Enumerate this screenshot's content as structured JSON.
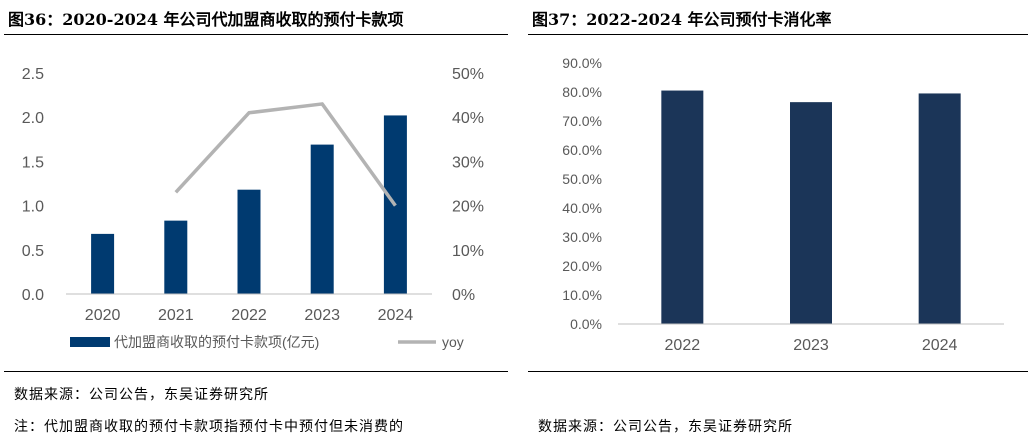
{
  "left": {
    "title": "图36：2020-2024 年公司代加盟商收取的预付卡款项",
    "source": "数据来源：公司公告，东吴证券研究所",
    "note": "注：代加盟商收取的预付卡款项指预付卡中预付但未消费的",
    "colors": {
      "bar": "#003a70",
      "line": "#b3b3b3"
    }
  },
  "right": {
    "title": "图37：2022-2024 年公司预付卡消化率",
    "source": "数据来源：公司公告，东吴证券研究所",
    "colors": {
      "bar": "#1b3558"
    }
  },
  "chart_data": [
    {
      "type": "bar",
      "title": "图36：2020-2024 年公司代加盟商收取的预付卡款项",
      "categories": [
        "2020",
        "2021",
        "2022",
        "2023",
        "2024"
      ],
      "series": [
        {
          "name": "代加盟商收取的预付卡款项(亿元)",
          "type": "bar",
          "axis": "left",
          "values": [
            0.68,
            0.83,
            1.18,
            1.69,
            2.02
          ]
        },
        {
          "name": "yoy",
          "type": "line",
          "axis": "right",
          "values": [
            null,
            23,
            41,
            43,
            20
          ]
        }
      ],
      "ylim": [
        0,
        2.5
      ],
      "yticks": [
        "0.0",
        "0.5",
        "1.0",
        "1.5",
        "2.0",
        "2.5"
      ],
      "y2lim": [
        0,
        50
      ],
      "y2ticks": [
        "0%",
        "10%",
        "20%",
        "30%",
        "40%",
        "50%"
      ],
      "legend": "bottom",
      "grid": false
    },
    {
      "type": "bar",
      "title": "图37：2022-2024 年公司预付卡消化率",
      "categories": [
        "2022",
        "2023",
        "2024"
      ],
      "series": [
        {
          "values": [
            80.5,
            76.5,
            79.5
          ]
        }
      ],
      "ylim": [
        0,
        90
      ],
      "yticks": [
        "0.0%",
        "10.0%",
        "20.0%",
        "30.0%",
        "40.0%",
        "50.0%",
        "60.0%",
        "70.0%",
        "80.0%",
        "90.0%"
      ],
      "legend": "none",
      "grid": false
    }
  ]
}
